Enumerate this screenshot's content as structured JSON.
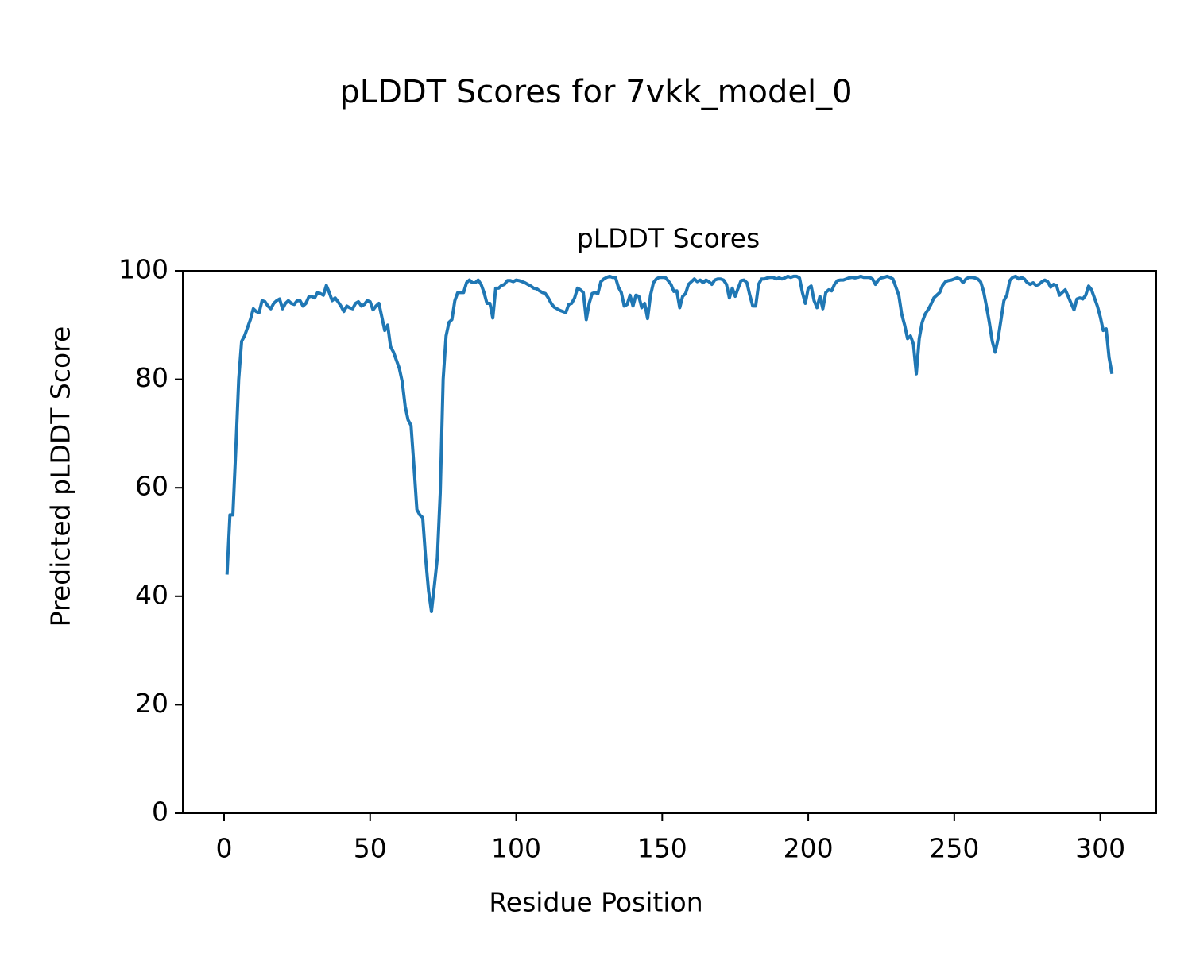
{
  "chart_data": {
    "type": "line",
    "title": "pLDDT Scores for 7vkk_model_0",
    "subtitle": "pLDDT Scores",
    "x_label": "Residue Position",
    "y_label": "Predicted pLDDT Score",
    "xlim": [
      -14.15,
      319.15
    ],
    "ylim": [
      0,
      100
    ],
    "xticks": [
      0,
      50,
      100,
      150,
      200,
      250,
      300
    ],
    "yticks": [
      0,
      20,
      40,
      60,
      80,
      100
    ],
    "grid": false,
    "x": [
      1,
      2,
      3,
      4,
      5,
      6,
      7,
      8,
      9,
      10,
      11,
      12,
      13,
      14,
      15,
      16,
      17,
      18,
      19,
      20,
      21,
      22,
      23,
      24,
      25,
      26,
      27,
      28,
      29,
      30,
      31,
      32,
      33,
      34,
      35,
      36,
      37,
      38,
      39,
      40,
      41,
      42,
      43,
      44,
      45,
      46,
      47,
      48,
      49,
      50,
      51,
      52,
      53,
      54,
      55,
      56,
      57,
      58,
      59,
      60,
      61,
      62,
      63,
      64,
      65,
      66,
      67,
      68,
      69,
      70,
      71,
      72,
      73,
      74,
      75,
      76,
      77,
      78,
      79,
      80,
      81,
      82,
      83,
      84,
      85,
      86,
      87,
      88,
      89,
      90,
      91,
      92,
      93,
      94,
      95,
      96,
      97,
      98,
      99,
      100,
      101,
      102,
      103,
      104,
      105,
      106,
      107,
      108,
      109,
      110,
      111,
      112,
      113,
      114,
      115,
      116,
      117,
      118,
      119,
      120,
      121,
      122,
      123,
      124,
      125,
      126,
      127,
      128,
      129,
      130,
      131,
      132,
      133,
      134,
      135,
      136,
      137,
      138,
      139,
      140,
      141,
      142,
      143,
      144,
      145,
      146,
      147,
      148,
      149,
      150,
      151,
      152,
      153,
      154,
      155,
      156,
      157,
      158,
      159,
      160,
      161,
      162,
      163,
      164,
      165,
      166,
      167,
      168,
      169,
      170,
      171,
      172,
      173,
      174,
      175,
      176,
      177,
      178,
      179,
      180,
      181,
      182,
      183,
      184,
      185,
      186,
      187,
      188,
      189,
      190,
      191,
      192,
      193,
      194,
      195,
      196,
      197,
      198,
      199,
      200,
      201,
      202,
      203,
      204,
      205,
      206,
      207,
      208,
      209,
      210,
      211,
      212,
      213,
      214,
      215,
      216,
      217,
      218,
      219,
      220,
      221,
      222,
      223,
      224,
      225,
      226,
      227,
      228,
      229,
      230,
      231,
      232,
      233,
      234,
      235,
      236,
      237,
      238,
      239,
      240,
      241,
      242,
      243,
      244,
      245,
      246,
      247,
      248,
      249,
      250,
      251,
      252,
      253,
      254,
      255,
      256,
      257,
      258,
      259,
      260,
      261,
      262,
      263,
      264,
      265,
      266,
      267,
      268,
      269,
      270,
      271,
      272,
      273,
      274,
      275,
      276,
      277,
      278,
      279,
      280,
      281,
      282,
      283,
      284,
      285,
      286,
      287,
      288,
      289,
      290,
      291,
      292,
      293,
      294,
      295,
      296,
      297,
      298,
      299,
      300,
      301,
      302,
      303,
      304
    ],
    "series": [
      {
        "name": "pLDDT",
        "color": "#1f77b4",
        "values": [
          44,
          55,
          55,
          67,
          80,
          87,
          88,
          89.5,
          91,
          93,
          92.5,
          92.3,
          94.5,
          94.3,
          93.5,
          93,
          94,
          94.5,
          94.8,
          93,
          94,
          94.5,
          94,
          93.8,
          94.5,
          94.5,
          93.5,
          94,
          95.2,
          95.3,
          95,
          96,
          95.8,
          95.5,
          97.3,
          96,
          94.5,
          95,
          94.3,
          93.5,
          92.5,
          93.5,
          93.2,
          93,
          94,
          94.3,
          93.5,
          93.8,
          94.5,
          94.3,
          92.8,
          93.5,
          94,
          91.5,
          89,
          90,
          86,
          85,
          83.5,
          82,
          79.5,
          75,
          72.5,
          71.5,
          64,
          56,
          55,
          54.5,
          47,
          41,
          37.2,
          42,
          47,
          59,
          80,
          88,
          90.5,
          91,
          94.5,
          96,
          96,
          96,
          97.8,
          98.3,
          97.8,
          97.8,
          98.3,
          97.5,
          96,
          94,
          94,
          91.3,
          96.8,
          96.8,
          97.3,
          97.5,
          98.2,
          98.2,
          98,
          98.3,
          98.2,
          98,
          97.8,
          97.5,
          97.2,
          96.8,
          96.7,
          96.3,
          96,
          95.8,
          95,
          94,
          93.3,
          93,
          92.7,
          92.5,
          92.3,
          93.8,
          94,
          95,
          96.8,
          96.5,
          96,
          91,
          94,
          95.8,
          96,
          95.8,
          98,
          98.5,
          98.8,
          99,
          98.8,
          98.8,
          97,
          96,
          93.5,
          93.8,
          95.5,
          93.5,
          95.5,
          95.3,
          93.2,
          94,
          91.2,
          95.5,
          97.8,
          98.5,
          98.8,
          98.8,
          98.8,
          98.2,
          97.5,
          96.2,
          96.3,
          93.2,
          95.3,
          95.8,
          97.5,
          98,
          98.5,
          98,
          98.3,
          97.8,
          98.3,
          98,
          97.5,
          98.3,
          98.5,
          98.5,
          98.3,
          97.5,
          95,
          96.8,
          95.3,
          96.8,
          98.2,
          98.3,
          97.8,
          95.5,
          93.5,
          93.5,
          97.5,
          98.5,
          98.5,
          98.7,
          98.8,
          98.8,
          98.5,
          98.7,
          98.5,
          98.7,
          99,
          98.8,
          99,
          99,
          98.7,
          96,
          94,
          96.8,
          97.2,
          94.5,
          93.2,
          95.3,
          93,
          96,
          96.5,
          96.3,
          97.5,
          98.2,
          98.3,
          98.3,
          98.5,
          98.7,
          98.8,
          98.7,
          98.8,
          99,
          98.8,
          98.8,
          98.8,
          98.5,
          97.5,
          98.3,
          98.7,
          98.8,
          99,
          98.8,
          98.5,
          97,
          95.5,
          92,
          90,
          87.5,
          88,
          86.5,
          81,
          87.5,
          90.5,
          92,
          92.8,
          93.8,
          95,
          95.5,
          96,
          97.3,
          98,
          98.2,
          98.3,
          98.5,
          98.7,
          98.5,
          97.8,
          98.5,
          98.8,
          98.8,
          98.7,
          98.5,
          98,
          96.3,
          93.5,
          90.5,
          87,
          85,
          87.5,
          91,
          94.5,
          95.5,
          98.2,
          98.8,
          99,
          98.5,
          98.8,
          98.5,
          97.8,
          97.5,
          97.8,
          97.3,
          97.5,
          98,
          98.3,
          98,
          97,
          97.5,
          97.3,
          95.5,
          96,
          96.5,
          95.3,
          94,
          92.8,
          94.8,
          95,
          94.8,
          95.5,
          97.2,
          96.5,
          95,
          93.5,
          91.5,
          89,
          89.3,
          84,
          81
        ]
      }
    ]
  }
}
